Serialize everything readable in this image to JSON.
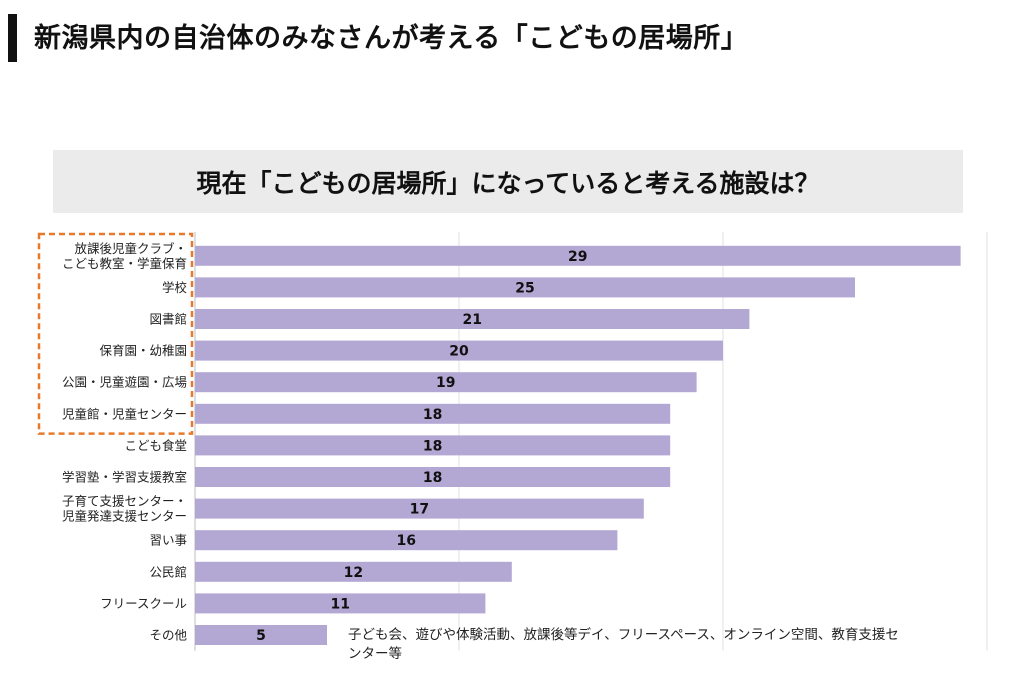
{
  "page": {
    "title": "新潟県内の自治体のみなさんが考える「こどもの居場所」"
  },
  "chart_data": {
    "type": "bar",
    "orientation": "horizontal",
    "title": "現在「こどもの居場所」になっていると考える施設は？",
    "categories": [
      "放課後児童クラブ・\nこども教室・学童保育",
      "学校",
      "図書館",
      "保育園・幼稚園",
      "公園・児童遊園・広場",
      "児童館・児童センター",
      "こども食堂",
      "学習塾・学習支援教室",
      "子育て支援センター・\n児童発達支援センター",
      "習い事",
      "公民館",
      "フリースクール",
      "その他"
    ],
    "values": [
      29,
      25,
      21,
      20,
      19,
      18,
      18,
      18,
      17,
      16,
      12,
      11,
      5
    ],
    "xlim": [
      0,
      30
    ],
    "gridlines": [
      10,
      20,
      30
    ],
    "grid": true,
    "bar_color": "#b3a7d3",
    "highlight_box_color": "#e8792b",
    "highlighted_categories": 6,
    "annotation": "子ども会、遊びや体験活動、放課後等デイ、フリースペース、オンライン空間、教育支援センター等"
  }
}
